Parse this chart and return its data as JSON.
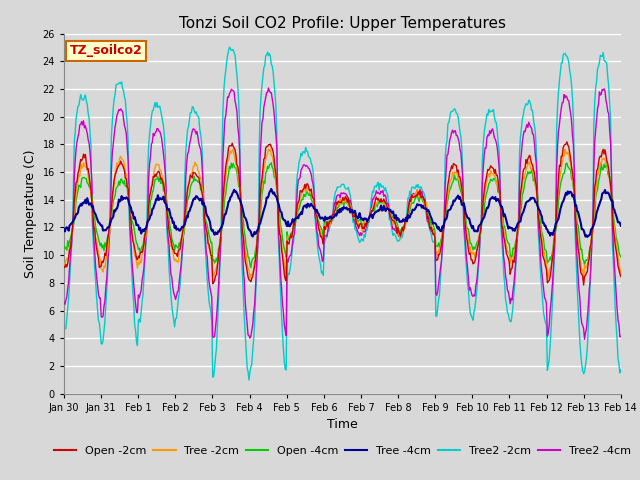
{
  "title": "Tonzi Soil CO2 Profile: Upper Temperatures",
  "xlabel": "Time",
  "ylabel": "Soil Temperature (C)",
  "ylim": [
    0,
    26
  ],
  "yticks": [
    0,
    2,
    4,
    6,
    8,
    10,
    12,
    14,
    16,
    18,
    20,
    22,
    24,
    26
  ],
  "x_labels": [
    "Jan 30",
    "Jan 31",
    "Feb 1",
    "Feb 2",
    "Feb 3",
    "Feb 4",
    "Feb 5",
    "Feb 6",
    "Feb 7",
    "Feb 8",
    "Feb 9",
    "Feb 10",
    "Feb 11",
    "Feb 12",
    "Feb 13",
    "Feb 14"
  ],
  "label_box_text": "TZ_soilco2",
  "label_box_facecolor": "#ffffcc",
  "label_box_edgecolor": "#cc6600",
  "label_box_textcolor": "#cc0000",
  "plot_bg_color": "#d8d8d8",
  "grid_color": "#ffffff",
  "colors": {
    "Open -2cm": "#cc0000",
    "Tree -2cm": "#ff9900",
    "Open -4cm": "#00cc00",
    "Tree -4cm": "#000099",
    "Tree2 -2cm": "#00cccc",
    "Tree2 -4cm": "#cc00cc"
  },
  "legend_labels": [
    "Open -2cm",
    "Tree -2cm",
    "Open -4cm",
    "Tree -4cm",
    "Tree2 -2cm",
    "Tree2 -4cm"
  ]
}
